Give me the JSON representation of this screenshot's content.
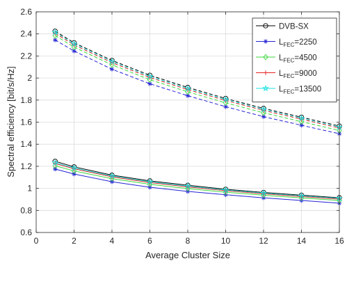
{
  "chart_data": {
    "type": "line",
    "xlabel": "Average Cluster Size",
    "ylabel": "Spectral efficiency [bit/s/Hz]",
    "xlim": [
      0,
      16
    ],
    "ylim": [
      0.6,
      2.6
    ],
    "xticks": [
      0,
      2,
      4,
      6,
      8,
      10,
      12,
      14,
      16
    ],
    "yticks": [
      0.6,
      0.8,
      1,
      1.2,
      1.4,
      1.6,
      1.8,
      2,
      2.2,
      2.4,
      2.6
    ],
    "xtick_labels": [
      "0",
      "2",
      "4",
      "6",
      "8",
      "10",
      "12",
      "14",
      "16"
    ],
    "ytick_labels": [
      "0.6",
      "0.8",
      "1",
      "1.2",
      "1.4",
      "1.6",
      "1.8",
      "2",
      "2.2",
      "2.4",
      "2.6"
    ],
    "grid": true,
    "legend_position": "top-right",
    "x": [
      1,
      2,
      4,
      6,
      8,
      10,
      12,
      14,
      16
    ],
    "series": [
      {
        "name": "DVB-SX",
        "legend": {
          "main": "DVB-SX",
          "sub": "",
          "tail": ""
        },
        "color": "#000000",
        "marker": "circle",
        "solid": [
          1.245,
          1.195,
          1.12,
          1.068,
          1.028,
          0.992,
          0.963,
          0.938,
          0.915
        ],
        "dashed": [
          2.425,
          2.32,
          2.16,
          2.025,
          1.915,
          1.815,
          1.725,
          1.645,
          1.565
        ]
      },
      {
        "name": "LFEC=2250",
        "legend": {
          "main": "L",
          "sub": "FEC",
          "tail": "=2250"
        },
        "color": "#2323d6",
        "marker": "asterisk",
        "solid": [
          1.175,
          1.13,
          1.06,
          1.01,
          0.972,
          0.942,
          0.914,
          0.89,
          0.866
        ],
        "dashed": [
          2.345,
          2.245,
          2.08,
          1.948,
          1.84,
          1.74,
          1.65,
          1.572,
          1.495
        ]
      },
      {
        "name": "LFEC=4500",
        "legend": {
          "main": "L",
          "sub": "FEC",
          "tail": "=4500"
        },
        "color": "#3ed63e",
        "marker": "diamond",
        "solid": [
          1.205,
          1.158,
          1.088,
          1.037,
          0.998,
          0.965,
          0.938,
          0.913,
          0.89
        ],
        "dashed": [
          2.385,
          2.28,
          2.12,
          1.985,
          1.875,
          1.775,
          1.685,
          1.605,
          1.525
        ]
      },
      {
        "name": "LFEC=9000",
        "legend": {
          "main": "L",
          "sub": "FEC",
          "tail": "=9000"
        },
        "color": "#e61e1e",
        "marker": "plus",
        "solid": [
          1.225,
          1.178,
          1.105,
          1.053,
          1.013,
          0.979,
          0.951,
          0.926,
          0.903
        ],
        "dashed": [
          2.405,
          2.3,
          2.14,
          2.005,
          1.895,
          1.797,
          1.707,
          1.627,
          1.547
        ]
      },
      {
        "name": "LFEC=13500",
        "legend": {
          "main": "L",
          "sub": "FEC",
          "tail": "=13500"
        },
        "color": "#1ee0e0",
        "marker": "star",
        "solid": [
          1.232,
          1.185,
          1.112,
          1.06,
          1.02,
          0.985,
          0.957,
          0.932,
          0.909
        ],
        "dashed": [
          2.415,
          2.31,
          2.15,
          2.015,
          1.905,
          1.806,
          1.716,
          1.636,
          1.556
        ]
      }
    ]
  }
}
